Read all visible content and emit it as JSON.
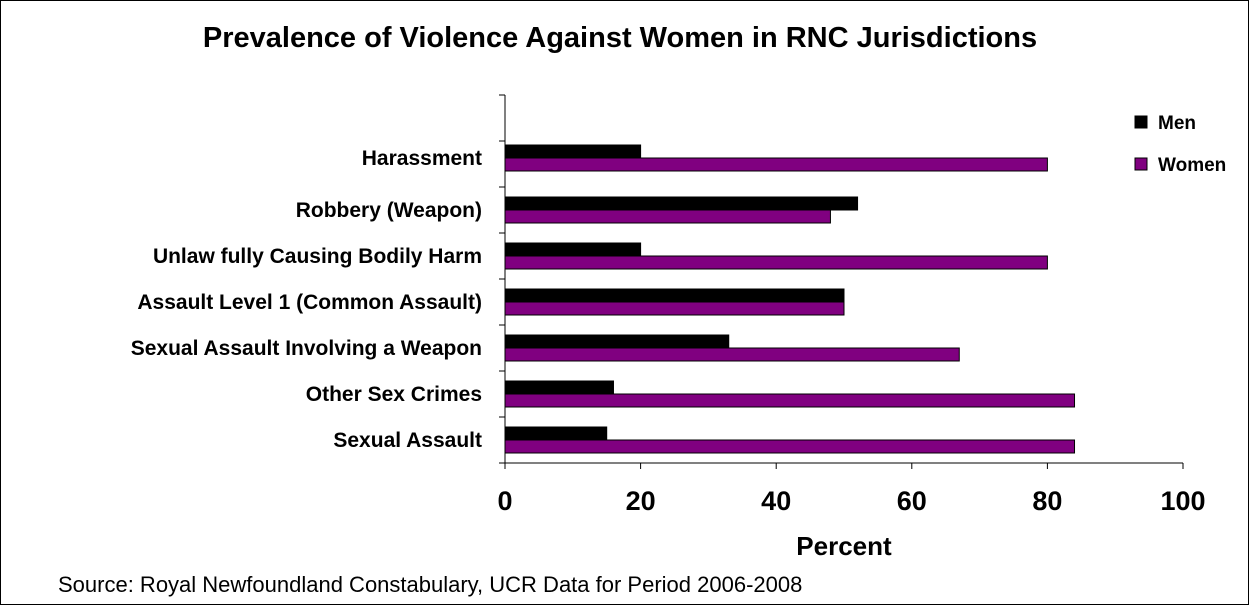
{
  "chart_data": {
    "type": "bar",
    "orientation": "horizontal",
    "title": "Prevalence of Violence Against Women in RNC Jurisdictions",
    "xlabel": "Percent",
    "ylabel": "",
    "xlim": [
      0,
      100
    ],
    "x_ticks": [
      "0",
      "20",
      "40",
      "60",
      "80",
      "100"
    ],
    "categories": [
      "Harassment",
      "Robbery (Weapon)",
      "Unlaw fully Causing Bodily Harm",
      "Assault Level 1 (Common Assault)",
      "Sexual Assault Involving a Weapon",
      "Other Sex Crimes",
      "Sexual Assault"
    ],
    "series": [
      {
        "name": "Men",
        "color": "#000000",
        "values": [
          20,
          52,
          20,
          50,
          33,
          16,
          15
        ]
      },
      {
        "name": "Women",
        "color": "#800080",
        "values": [
          80,
          48,
          80,
          50,
          67,
          84,
          84
        ]
      }
    ],
    "legend_position": "top-right",
    "grid": false,
    "source": "Source:  Royal Newfoundland Constabulary, UCR Data for Period 2006-2008"
  }
}
